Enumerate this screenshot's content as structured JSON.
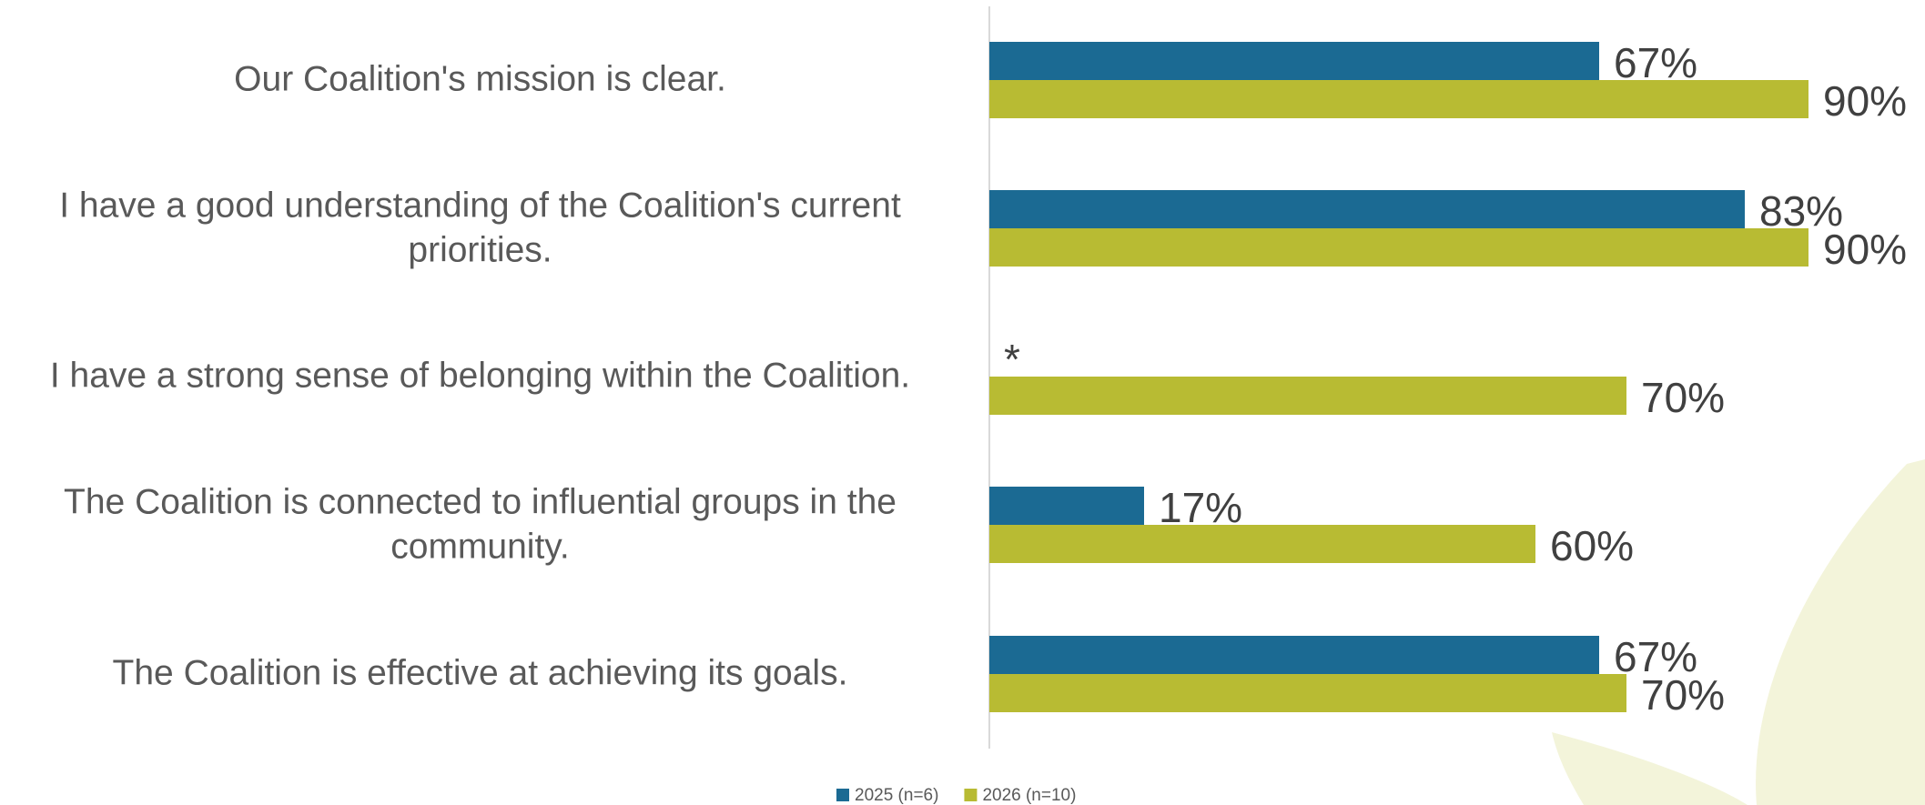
{
  "chart_data": {
    "type": "bar",
    "orientation": "horizontal",
    "categories": [
      "Our Coalition's mission is clear.",
      "I have a good understanding of the Coalition's current priorities.",
      "I have a strong sense of belonging within the Coalition.",
      "The Coalition is connected to influential groups in the community.",
      "The Coalition is effective at achieving its goals."
    ],
    "series": [
      {
        "name": "2025 (n=6)",
        "color": "#1b6a93",
        "values": [
          67,
          83,
          null,
          17,
          67
        ],
        "value_labels": [
          "67%",
          "83%",
          "*",
          "17%",
          "67%"
        ]
      },
      {
        "name": "2026 (n=10)",
        "color": "#b8bb33",
        "values": [
          90,
          90,
          70,
          60,
          70
        ],
        "value_labels": [
          "90%",
          "90%",
          "70%",
          "60%",
          "70%"
        ]
      }
    ],
    "xlim": [
      0,
      100
    ],
    "legend": "bottom"
  }
}
